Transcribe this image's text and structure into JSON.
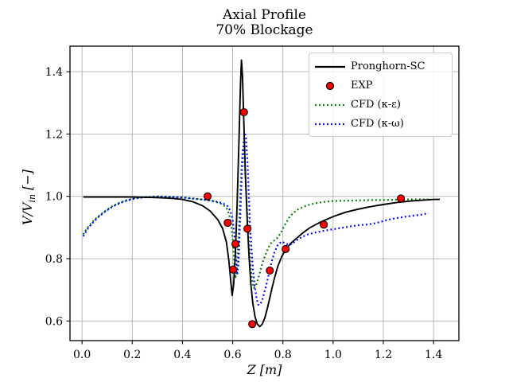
{
  "figure": {
    "title_line1": "Axial Profile",
    "title_line2": "70% Blockage",
    "xlabel": "Z [m]",
    "ylabel_main": "V/V",
    "ylabel_sub": "in",
    "ylabel_unit": " [−]"
  },
  "chart_data": {
    "type": "line",
    "title": "Axial Profile — 70% Blockage",
    "xlabel": "Z [m]",
    "ylabel": "V/V_in [-]",
    "xlim": [
      -0.048,
      1.501
    ],
    "ylim": [
      0.537,
      1.482
    ],
    "xticks": [
      0.0,
      0.2,
      0.4,
      0.6,
      0.8,
      1.0,
      1.2,
      1.4
    ],
    "yticks": [
      0.6,
      0.8,
      1.0,
      1.2,
      1.4
    ],
    "grid": true,
    "grid_color": "#b0b0b0",
    "background": "#ffffff",
    "legend_position": "upper right",
    "series": [
      {
        "name": "Pronghorn-SC",
        "type": "line",
        "style": "solid",
        "color": "#000000",
        "width": 1.9,
        "points": [
          [
            0.005,
            0.998
          ],
          [
            0.05,
            0.998
          ],
          [
            0.1,
            0.998
          ],
          [
            0.15,
            0.998
          ],
          [
            0.2,
            0.998
          ],
          [
            0.25,
            0.997
          ],
          [
            0.3,
            0.996
          ],
          [
            0.35,
            0.994
          ],
          [
            0.4,
            0.99
          ],
          [
            0.44,
            0.983
          ],
          [
            0.48,
            0.97
          ],
          [
            0.51,
            0.953
          ],
          [
            0.54,
            0.926
          ],
          [
            0.56,
            0.897
          ],
          [
            0.575,
            0.853
          ],
          [
            0.585,
            0.793
          ],
          [
            0.592,
            0.733
          ],
          [
            0.598,
            0.682
          ],
          [
            0.604,
            0.718
          ],
          [
            0.611,
            0.82
          ],
          [
            0.618,
            0.98
          ],
          [
            0.625,
            1.18
          ],
          [
            0.631,
            1.36
          ],
          [
            0.635,
            1.437
          ],
          [
            0.639,
            1.385
          ],
          [
            0.645,
            1.22
          ],
          [
            0.651,
            1.06
          ],
          [
            0.658,
            0.92
          ],
          [
            0.665,
            0.81
          ],
          [
            0.672,
            0.722
          ],
          [
            0.68,
            0.658
          ],
          [
            0.689,
            0.613
          ],
          [
            0.698,
            0.59
          ],
          [
            0.708,
            0.582
          ],
          [
            0.718,
            0.59
          ],
          [
            0.728,
            0.61
          ],
          [
            0.738,
            0.64
          ],
          [
            0.748,
            0.675
          ],
          [
            0.758,
            0.71
          ],
          [
            0.768,
            0.742
          ],
          [
            0.78,
            0.776
          ],
          [
            0.795,
            0.806
          ],
          [
            0.81,
            0.828
          ],
          [
            0.83,
            0.848
          ],
          [
            0.855,
            0.866
          ],
          [
            0.88,
            0.883
          ],
          [
            0.905,
            0.898
          ],
          [
            0.93,
            0.909
          ],
          [
            0.955,
            0.919
          ],
          [
            0.98,
            0.928
          ],
          [
            1.01,
            0.938
          ],
          [
            1.05,
            0.949
          ],
          [
            1.09,
            0.957
          ],
          [
            1.13,
            0.964
          ],
          [
            1.17,
            0.97
          ],
          [
            1.21,
            0.975
          ],
          [
            1.26,
            0.981
          ],
          [
            1.31,
            0.985
          ],
          [
            1.36,
            0.988
          ],
          [
            1.4,
            0.99
          ],
          [
            1.425,
            0.99
          ]
        ]
      },
      {
        "name": "EXP",
        "type": "scatter",
        "marker": "circle",
        "color": "#ff0000",
        "edge_color": "#000000",
        "size": 9,
        "points": [
          [
            0.5,
            1.0
          ],
          [
            0.58,
            0.915
          ],
          [
            0.602,
            0.765
          ],
          [
            0.611,
            0.847
          ],
          [
            0.645,
            1.27
          ],
          [
            0.659,
            0.896
          ],
          [
            0.678,
            0.59
          ],
          [
            0.748,
            0.762
          ],
          [
            0.811,
            0.831
          ],
          [
            0.963,
            0.909
          ],
          [
            1.27,
            0.993
          ]
        ]
      },
      {
        "name": "CFD (κ-ε)",
        "type": "line",
        "style": "dotted",
        "color": "#008000",
        "width": 2.2,
        "points": [
          [
            0.005,
            0.878
          ],
          [
            0.02,
            0.898
          ],
          [
            0.04,
            0.917
          ],
          [
            0.06,
            0.933
          ],
          [
            0.09,
            0.952
          ],
          [
            0.12,
            0.968
          ],
          [
            0.15,
            0.98
          ],
          [
            0.18,
            0.988
          ],
          [
            0.21,
            0.994
          ],
          [
            0.25,
            0.998
          ],
          [
            0.3,
            1.0
          ],
          [
            0.35,
            0.999
          ],
          [
            0.4,
            0.997
          ],
          [
            0.45,
            0.993
          ],
          [
            0.5,
            0.988
          ],
          [
            0.53,
            0.983
          ],
          [
            0.56,
            0.975
          ],
          [
            0.575,
            0.963
          ],
          [
            0.585,
            0.945
          ],
          [
            0.593,
            0.915
          ],
          [
            0.6,
            0.862
          ],
          [
            0.606,
            0.79
          ],
          [
            0.611,
            0.737
          ],
          [
            0.617,
            0.765
          ],
          [
            0.623,
            0.86
          ],
          [
            0.629,
            0.985
          ],
          [
            0.635,
            1.09
          ],
          [
            0.64,
            1.155
          ],
          [
            0.646,
            1.135
          ],
          [
            0.652,
            1.04
          ],
          [
            0.658,
            0.945
          ],
          [
            0.664,
            0.855
          ],
          [
            0.67,
            0.785
          ],
          [
            0.677,
            0.732
          ],
          [
            0.684,
            0.706
          ],
          [
            0.692,
            0.713
          ],
          [
            0.7,
            0.732
          ],
          [
            0.71,
            0.76
          ],
          [
            0.72,
            0.79
          ],
          [
            0.735,
            0.822
          ],
          [
            0.75,
            0.848
          ],
          [
            0.765,
            0.858
          ],
          [
            0.78,
            0.868
          ],
          [
            0.795,
            0.888
          ],
          [
            0.81,
            0.912
          ],
          [
            0.825,
            0.932
          ],
          [
            0.84,
            0.946
          ],
          [
            0.86,
            0.958
          ],
          [
            0.88,
            0.966
          ],
          [
            0.9,
            0.972
          ],
          [
            0.93,
            0.978
          ],
          [
            0.96,
            0.982
          ],
          [
            1.0,
            0.985
          ],
          [
            1.05,
            0.986
          ],
          [
            1.1,
            0.987
          ],
          [
            1.15,
            0.988
          ],
          [
            1.2,
            0.988
          ],
          [
            1.25,
            0.989
          ],
          [
            1.3,
            0.99
          ],
          [
            1.35,
            0.99
          ],
          [
            1.39,
            0.99
          ]
        ]
      },
      {
        "name": "CFD (κ-ω)",
        "type": "line",
        "style": "dotted",
        "color": "#0000ff",
        "width": 2.2,
        "points": [
          [
            0.005,
            0.872
          ],
          [
            0.02,
            0.893
          ],
          [
            0.04,
            0.913
          ],
          [
            0.06,
            0.93
          ],
          [
            0.09,
            0.95
          ],
          [
            0.12,
            0.966
          ],
          [
            0.15,
            0.978
          ],
          [
            0.18,
            0.987
          ],
          [
            0.21,
            0.993
          ],
          [
            0.25,
            0.997
          ],
          [
            0.3,
            0.999
          ],
          [
            0.35,
            0.998
          ],
          [
            0.4,
            0.996
          ],
          [
            0.45,
            0.992
          ],
          [
            0.5,
            0.988
          ],
          [
            0.53,
            0.984
          ],
          [
            0.56,
            0.978
          ],
          [
            0.58,
            0.968
          ],
          [
            0.59,
            0.955
          ],
          [
            0.6,
            0.925
          ],
          [
            0.607,
            0.875
          ],
          [
            0.613,
            0.8
          ],
          [
            0.618,
            0.748
          ],
          [
            0.623,
            0.78
          ],
          [
            0.628,
            0.89
          ],
          [
            0.633,
            1.0
          ],
          [
            0.638,
            1.1
          ],
          [
            0.643,
            1.17
          ],
          [
            0.648,
            1.205
          ],
          [
            0.653,
            1.19
          ],
          [
            0.659,
            1.11
          ],
          [
            0.664,
            1.01
          ],
          [
            0.669,
            0.91
          ],
          [
            0.675,
            0.83
          ],
          [
            0.681,
            0.765
          ],
          [
            0.688,
            0.712
          ],
          [
            0.695,
            0.672
          ],
          [
            0.702,
            0.652
          ],
          [
            0.71,
            0.653
          ],
          [
            0.718,
            0.668
          ],
          [
            0.727,
            0.695
          ],
          [
            0.737,
            0.725
          ],
          [
            0.747,
            0.762
          ],
          [
            0.757,
            0.795
          ],
          [
            0.767,
            0.822
          ],
          [
            0.78,
            0.845
          ],
          [
            0.795,
            0.855
          ],
          [
            0.81,
            0.849
          ],
          [
            0.825,
            0.843
          ],
          [
            0.84,
            0.85
          ],
          [
            0.86,
            0.862
          ],
          [
            0.88,
            0.871
          ],
          [
            0.9,
            0.878
          ],
          [
            0.93,
            0.884
          ],
          [
            0.96,
            0.889
          ],
          [
            0.99,
            0.893
          ],
          [
            1.02,
            0.897
          ],
          [
            1.05,
            0.901
          ],
          [
            1.08,
            0.905
          ],
          [
            1.11,
            0.908
          ],
          [
            1.14,
            0.91
          ],
          [
            1.17,
            0.914
          ],
          [
            1.2,
            0.921
          ],
          [
            1.23,
            0.927
          ],
          [
            1.26,
            0.931
          ],
          [
            1.29,
            0.935
          ],
          [
            1.32,
            0.938
          ],
          [
            1.35,
            0.941
          ],
          [
            1.38,
            0.946
          ]
        ]
      }
    ]
  }
}
